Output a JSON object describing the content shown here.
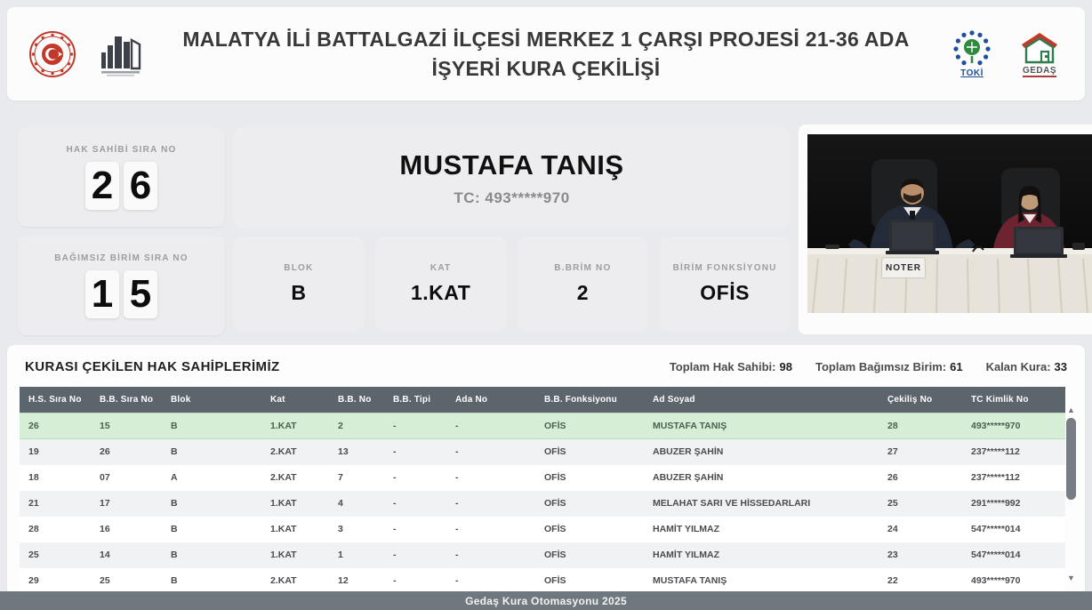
{
  "header": {
    "title": "MALATYA İLİ BATTALGAZİ İLÇESİ MERKEZ 1 ÇARŞI PROJESİ 21-36 ADA İŞYERİ KURA ÇEKİLİŞİ",
    "logos": {
      "toki_caption": "TOKİ",
      "gedas_caption": "GEDAŞ"
    }
  },
  "draw": {
    "hak_sahibi": {
      "label": "HAK SAHİBİ SIRA NO",
      "digits": [
        "2",
        "6"
      ]
    },
    "bagimsiz_birim": {
      "label": "BAĞIMSIZ BİRİM SIRA NO",
      "digits": [
        "1",
        "5"
      ]
    },
    "winner": {
      "name": "MUSTAFA TANIŞ",
      "tc": "TC: 493*****970"
    },
    "details": [
      {
        "label": "BLOK",
        "value": "B"
      },
      {
        "label": "KAT",
        "value": "1.KAT"
      },
      {
        "label": "B.BRİM NO",
        "value": "2"
      },
      {
        "label": "BİRİM FONKSİYONU",
        "value": "OFİS"
      }
    ]
  },
  "video": {
    "placard": "NOTER"
  },
  "results": {
    "title": "KURASI ÇEKİLEN HAK SAHİPLERİMİZ",
    "stats": [
      {
        "label": "Toplam Hak Sahibi:",
        "value": "98"
      },
      {
        "label": "Toplam Bağımsız Birim:",
        "value": "61"
      },
      {
        "label": "Kalan Kura:",
        "value": "33"
      }
    ],
    "columns": [
      "H.S. Sıra No",
      "B.B. Sıra No",
      "Blok",
      "Kat",
      "B.B. No",
      "B.B. Tipi",
      "Ada No",
      "B.B. Fonksiyonu",
      "Ad Soyad",
      "Çekiliş No",
      "TC Kimlik No"
    ],
    "rows": [
      {
        "highlight": true,
        "cells": [
          "26",
          "15",
          "B",
          "1.KAT",
          "2",
          "-",
          "-",
          "OFİS",
          "MUSTAFA TANIŞ",
          "28",
          "493*****970"
        ]
      },
      {
        "highlight": false,
        "cells": [
          "19",
          "26",
          "B",
          "2.KAT",
          "13",
          "-",
          "-",
          "OFİS",
          "ABUZER ŞAHİN",
          "27",
          "237*****112"
        ]
      },
      {
        "highlight": false,
        "cells": [
          "18",
          "07",
          "A",
          "2.KAT",
          "7",
          "-",
          "-",
          "OFİS",
          "ABUZER ŞAHİN",
          "26",
          "237*****112"
        ]
      },
      {
        "highlight": false,
        "cells": [
          "21",
          "17",
          "B",
          "1.KAT",
          "4",
          "-",
          "-",
          "OFİS",
          "MELAHAT SARI VE HİSSEDARLARI",
          "25",
          "291*****992"
        ]
      },
      {
        "highlight": false,
        "cells": [
          "28",
          "16",
          "B",
          "1.KAT",
          "3",
          "-",
          "-",
          "OFİS",
          "HAMİT YILMAZ",
          "24",
          "547*****014"
        ]
      },
      {
        "highlight": false,
        "cells": [
          "25",
          "14",
          "B",
          "1.KAT",
          "1",
          "-",
          "-",
          "OFİS",
          "HAMİT YILMAZ",
          "23",
          "547*****014"
        ]
      },
      {
        "highlight": false,
        "cells": [
          "29",
          "25",
          "B",
          "2.KAT",
          "12",
          "-",
          "-",
          "OFİS",
          "MUSTAFA TANIŞ",
          "22",
          "493*****970"
        ]
      }
    ]
  },
  "footer": {
    "text": "Gedaş Kura Otomasyonu 2025"
  },
  "colors": {
    "table_header_bg": "#5c646c",
    "highlight_row_bg": "#d6edd6",
    "footer_bg": "#70787f",
    "accent_red": "#c0392b",
    "toki_blue": "#1f4e9c",
    "gedas_green": "#2e7d4f"
  }
}
